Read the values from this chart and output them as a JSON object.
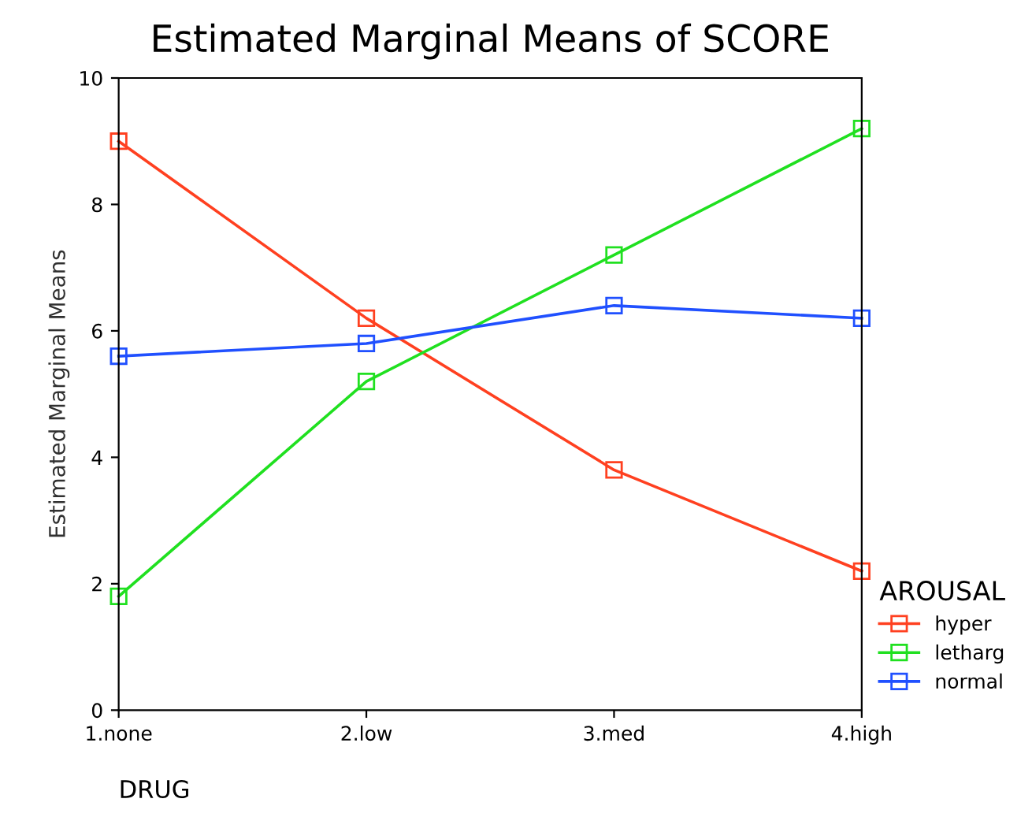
{
  "chart_data": {
    "type": "line",
    "title": "Estimated Marginal Means of SCORE",
    "xlabel": "DRUG",
    "ylabel": "Estimated Marginal Means",
    "legend_title": "AROUSAL",
    "categories": [
      "1.none",
      "2.low",
      "3.med",
      "4.high"
    ],
    "series": [
      {
        "name": "hyper",
        "color": "#ff4020",
        "values": [
          9.0,
          6.2,
          3.8,
          2.2
        ]
      },
      {
        "name": "letharg",
        "color": "#20e020",
        "values": [
          1.8,
          5.2,
          7.2,
          9.2
        ]
      },
      {
        "name": "normal",
        "color": "#2050ff",
        "values": [
          5.6,
          5.8,
          6.4,
          6.2
        ]
      }
    ],
    "ylim": [
      0,
      10
    ],
    "yticks": [
      0,
      2,
      4,
      6,
      8,
      10
    ],
    "grid": false,
    "legend": "bottom right",
    "marker": "square",
    "line_style": "solid"
  }
}
